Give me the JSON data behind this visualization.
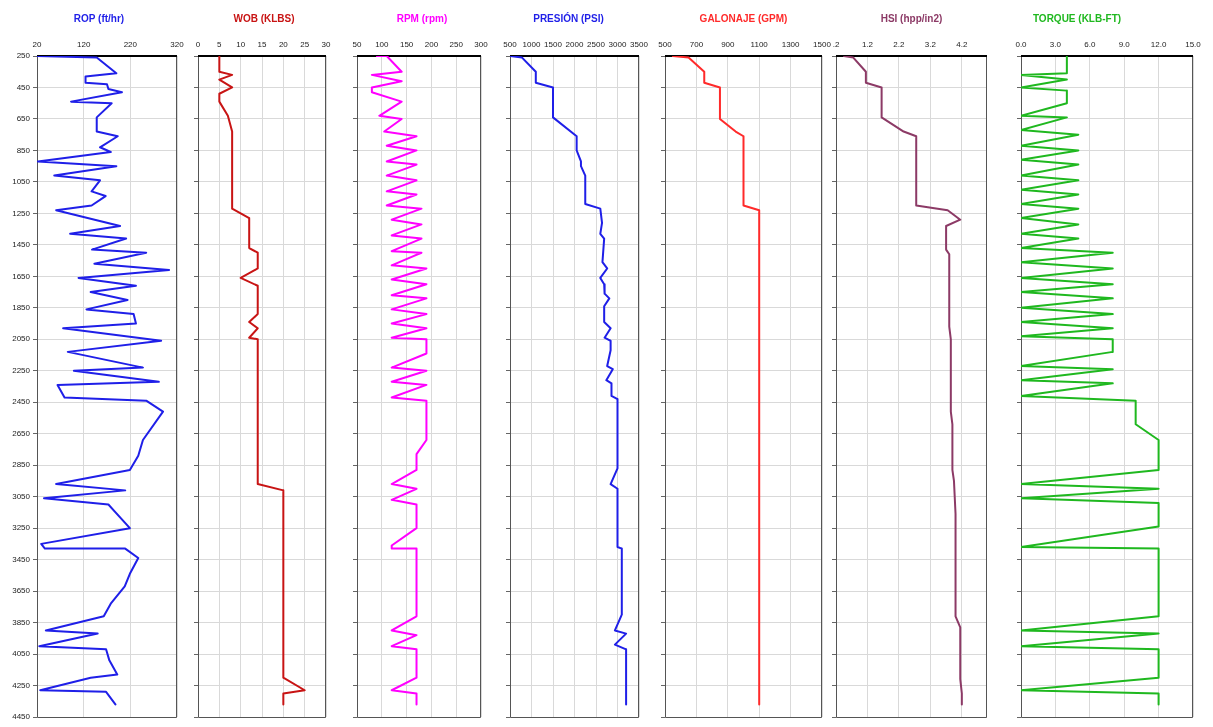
{
  "chart_data": [
    {
      "type": "line",
      "title": "ROP (ft/hr)",
      "color": "#1f1fe8",
      "x": [
        20,
        148,
        190,
        124,
        124,
        170,
        173,
        202,
        93,
        180,
        148,
        148,
        193,
        155,
        178,
        22,
        190,
        57,
        155,
        137,
        167,
        137,
        61,
        198,
        91,
        211,
        138,
        254,
        143,
        303,
        109,
        232,
        135,
        214,
        126,
        227,
        232,
        76,
        286,
        86,
        247,
        99,
        281,
        64,
        79,
        254,
        290,
        247,
        237,
        219,
        61,
        209,
        35,
        173,
        219,
        29,
        37,
        209,
        237,
        219,
        208,
        178,
        163,
        39,
        150,
        25,
        168,
        175,
        192,
        135,
        27,
        168,
        188
      ],
      "values": [
        250,
        260,
        360,
        380,
        420,
        430,
        460,
        480,
        540,
        550,
        640,
        730,
        760,
        830,
        860,
        920,
        950,
        1010,
        1040,
        1110,
        1140,
        1200,
        1230,
        1330,
        1380,
        1410,
        1480,
        1500,
        1570,
        1610,
        1660,
        1710,
        1750,
        1800,
        1860,
        1890,
        1950,
        1980,
        2060,
        2130,
        2230,
        2250,
        2320,
        2340,
        2420,
        2440,
        2510,
        2690,
        2790,
        2880,
        2970,
        3010,
        3060,
        3100,
        3250,
        3350,
        3380,
        3380,
        3440,
        3540,
        3620,
        3730,
        3810,
        3900,
        3920,
        4000,
        4020,
        4090,
        4180,
        4200,
        4280,
        4290,
        4370
      ],
      "xlim": [
        20,
        320
      ],
      "xticks": [
        20,
        120,
        220,
        320
      ],
      "ylim": [
        4450,
        250
      ],
      "yticks": [
        250,
        450,
        650,
        850,
        1050,
        1250,
        1450,
        1650,
        1850,
        2050,
        2250,
        2450,
        2650,
        2850,
        3050,
        3250,
        3450,
        3650,
        3850,
        4050,
        4250,
        4450
      ],
      "grid": true
    },
    {
      "type": "line",
      "title": "WOB (KLBS)",
      "color": "#c81414",
      "x": [
        5,
        5,
        8,
        5,
        8,
        5,
        5,
        7,
        8,
        8,
        12,
        12,
        14,
        14,
        10,
        14,
        14,
        12,
        14,
        12,
        14,
        14,
        20,
        20,
        25,
        20,
        20
      ],
      "values": [
        250,
        350,
        370,
        400,
        450,
        490,
        540,
        630,
        730,
        1220,
        1280,
        1470,
        1500,
        1600,
        1660,
        1710,
        1890,
        1940,
        1980,
        2040,
        2050,
        2970,
        3010,
        4200,
        4280,
        4300,
        4370
      ],
      "xlim": [
        0,
        30
      ],
      "xticks": [
        0,
        5,
        10,
        15,
        20,
        25,
        30
      ],
      "ylim": [
        4450,
        250
      ],
      "yticks": [
        250,
        450,
        650,
        850,
        1050,
        1250,
        1450,
        1650,
        1850,
        2050,
        2250,
        2450,
        2650,
        2850,
        3050,
        3250,
        3450,
        3650,
        3850,
        4050,
        4250,
        4450
      ],
      "grid": true,
      "tick_labels": "x"
    },
    {
      "type": "line",
      "title": "RPM (rpm)",
      "color": "#ff00ff",
      "x": [
        90,
        110,
        140,
        80,
        140,
        80,
        80,
        140,
        95,
        140,
        105,
        170,
        110,
        170,
        110,
        170,
        110,
        170,
        110,
        170,
        110,
        180,
        120,
        180,
        120,
        180,
        120,
        180,
        120,
        190,
        120,
        190,
        120,
        190,
        120,
        190,
        120,
        190,
        120,
        190,
        190,
        120,
        190,
        120,
        190,
        120,
        190,
        190,
        170,
        170,
        120,
        170,
        120,
        170,
        170,
        120,
        120,
        170,
        170,
        120,
        170,
        120,
        170,
        170,
        120,
        170,
        170
      ],
      "values": [
        250,
        250,
        350,
        370,
        410,
        450,
        480,
        540,
        630,
        650,
        730,
        760,
        820,
        850,
        920,
        940,
        1010,
        1040,
        1110,
        1130,
        1200,
        1220,
        1290,
        1320,
        1390,
        1410,
        1490,
        1500,
        1580,
        1600,
        1670,
        1700,
        1770,
        1790,
        1860,
        1890,
        1950,
        1980,
        2040,
        2050,
        2140,
        2230,
        2250,
        2320,
        2340,
        2420,
        2440,
        2690,
        2780,
        2880,
        2970,
        3000,
        3070,
        3100,
        3250,
        3360,
        3380,
        3380,
        3810,
        3900,
        3930,
        4000,
        4020,
        4200,
        4280,
        4300,
        4370
      ],
      "xlim": [
        50,
        300
      ],
      "xticks": [
        50,
        100,
        150,
        200,
        250,
        300
      ],
      "ylim": [
        4450,
        250
      ],
      "yticks": [
        250,
        450,
        650,
        850,
        1050,
        1250,
        1450,
        1650,
        1850,
        2050,
        2250,
        2450,
        2650,
        2850,
        3050,
        3250,
        3450,
        3650,
        3850,
        4050,
        4250,
        4450
      ],
      "grid": true,
      "tick_labels": "x"
    },
    {
      "type": "line",
      "title": "PRESIÓN (PSI)",
      "color": "#1f1fe8",
      "x": [
        500,
        780,
        1100,
        1100,
        1500,
        1500,
        2050,
        2050,
        2150,
        2150,
        2250,
        2250,
        2600,
        2640,
        2600,
        2690,
        2650,
        2760,
        2600,
        2690,
        2700,
        2810,
        2690,
        2690,
        2840,
        2700,
        2840,
        2840,
        2760,
        2890,
        2740,
        2860,
        2860,
        3000,
        3000,
        2840,
        3000,
        3000,
        3100,
        3100,
        2940,
        3200,
        2940,
        3200,
        3200
      ],
      "values": [
        250,
        260,
        350,
        420,
        450,
        640,
        760,
        850,
        920,
        950,
        1010,
        1190,
        1220,
        1310,
        1380,
        1410,
        1560,
        1600,
        1660,
        1700,
        1760,
        1790,
        1840,
        1940,
        1980,
        2040,
        2060,
        2120,
        2220,
        2240,
        2310,
        2330,
        2410,
        2430,
        2870,
        2970,
        3000,
        3370,
        3380,
        3800,
        3900,
        3920,
        3990,
        4020,
        4370
      ],
      "xlim": [
        500,
        3500
      ],
      "xticks": [
        500,
        1000,
        1500,
        2000,
        2500,
        3000,
        3500
      ],
      "ylim": [
        4450,
        250
      ],
      "yticks": [
        250,
        450,
        650,
        850,
        1050,
        1250,
        1450,
        1650,
        1850,
        2050,
        2250,
        2450,
        2650,
        2850,
        3050,
        3250,
        3450,
        3650,
        3850,
        4050,
        4250,
        4450
      ],
      "grid": true,
      "tick_labels": "x"
    },
    {
      "type": "line",
      "title": "GALONAJE (GPM)",
      "color": "#ff2a2a",
      "x": [
        550,
        650,
        750,
        750,
        850,
        850,
        950,
        1000,
        1000,
        1100,
        1100
      ],
      "values": [
        250,
        260,
        350,
        420,
        450,
        650,
        730,
        760,
        1200,
        1230,
        4370
      ],
      "xlim": [
        500,
        1500
      ],
      "xticks": [
        500,
        700,
        900,
        1100,
        1300,
        1500
      ],
      "ylim": [
        4450,
        250
      ],
      "yticks": [
        250,
        450,
        650,
        850,
        1050,
        1250,
        1450,
        1650,
        1850,
        2050,
        2250,
        2450,
        2650,
        2850,
        3050,
        3250,
        3450,
        3650,
        3850,
        4050,
        4250,
        4450
      ],
      "grid": true,
      "tick_labels": "x"
    },
    {
      "type": "line",
      "title": "HSI (hpp/in2)",
      "color": "#8c3a66",
      "x": [
        0.45,
        0.75,
        1.15,
        1.15,
        1.65,
        1.65,
        2.35,
        2.75,
        2.75,
        3.75,
        4.15,
        3.7,
        3.7,
        3.8,
        3.8,
        3.85,
        3.85,
        3.9,
        3.9,
        3.95,
        4.0,
        4.0,
        4.15,
        4.15,
        4.2,
        4.2
      ],
      "values": [
        250,
        260,
        350,
        420,
        450,
        640,
        730,
        760,
        1200,
        1230,
        1290,
        1330,
        1480,
        1510,
        1970,
        2050,
        2510,
        2590,
        2880,
        2950,
        3160,
        3810,
        3880,
        4210,
        4300,
        4370
      ],
      "xlim": [
        0.2,
        5.0
      ],
      "xticks": [
        {
          "value": 0.2,
          "label": ".2"
        },
        1.2,
        2.2,
        3.2,
        4.2
      ],
      "ylim": [
        4450,
        250
      ],
      "yticks": [
        250,
        450,
        650,
        850,
        1050,
        1250,
        1450,
        1650,
        1850,
        2050,
        2250,
        2450,
        2650,
        2850,
        3050,
        3250,
        3450,
        3650,
        3850,
        4050,
        4250,
        4450
      ],
      "grid": true,
      "tick_labels": "x"
    },
    {
      "type": "line",
      "title": "TORQUE (KLB-FT)",
      "color": "#1fb81f",
      "x": [
        4,
        4,
        0,
        4,
        0,
        4,
        4,
        0,
        4,
        0,
        5,
        0,
        5,
        0,
        5,
        0,
        5,
        0,
        5,
        0,
        5,
        0,
        5,
        0,
        5,
        0,
        8,
        0,
        8,
        0,
        8,
        0,
        8,
        0,
        8,
        0,
        8,
        0,
        8,
        8,
        0,
        8,
        0,
        8,
        0,
        10,
        10,
        12,
        12,
        0,
        12,
        0,
        12,
        12,
        0,
        12,
        12,
        0,
        12,
        0,
        12,
        12,
        0,
        12,
        12
      ],
      "values": [
        250,
        360,
        370,
        400,
        450,
        470,
        550,
        630,
        640,
        720,
        750,
        820,
        850,
        910,
        940,
        1010,
        1040,
        1100,
        1130,
        1190,
        1220,
        1280,
        1320,
        1380,
        1410,
        1470,
        1500,
        1560,
        1600,
        1660,
        1700,
        1750,
        1790,
        1850,
        1890,
        1940,
        1980,
        2030,
        2050,
        2130,
        2220,
        2240,
        2310,
        2330,
        2410,
        2440,
        2590,
        2690,
        2880,
        2970,
        3000,
        3060,
        3090,
        3240,
        3370,
        3380,
        3810,
        3900,
        3920,
        4000,
        4020,
        4200,
        4280,
        4300,
        4370
      ],
      "xlim": [
        0,
        15
      ],
      "xticks": [
        {
          "value": 0,
          "label": "0.0"
        },
        {
          "value": 3,
          "label": "3.0"
        },
        {
          "value": 6,
          "label": "6.0"
        },
        {
          "value": 9,
          "label": "9.0"
        },
        {
          "value": 12,
          "label": "12.0"
        },
        {
          "value": 15,
          "label": "15.0"
        }
      ],
      "ylim": [
        4450,
        250
      ],
      "yticks": [
        250,
        450,
        650,
        850,
        1050,
        1250,
        1450,
        1650,
        1850,
        2050,
        2250,
        2450,
        2650,
        2850,
        3050,
        3250,
        3450,
        3650,
        3850,
        4050,
        4250,
        4450
      ],
      "grid": true,
      "tick_labels": "x"
    }
  ]
}
